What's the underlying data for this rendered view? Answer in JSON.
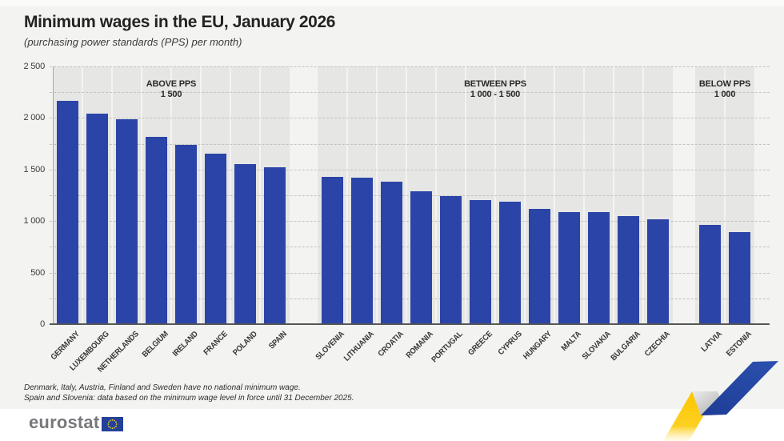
{
  "header": {
    "title": "Minimum wages in the EU, January 2026",
    "subtitle": "(purchasing power standards (PPS) per month)"
  },
  "y_axis": {
    "tick_labels": [
      "2 500",
      "2 000",
      "1 500",
      "1 000",
      "500",
      "0"
    ],
    "tick_values": [
      2500,
      2000,
      1500,
      1000,
      500,
      0
    ],
    "minor_step": 250
  },
  "chart_data": {
    "type": "bar",
    "title": "Minimum wages in the EU, January 2026",
    "subtitle": "(purchasing power standards (PPS) per month)",
    "ylabel": "PPS per month",
    "ylim": [
      0,
      2500
    ],
    "grid": "horizontal-dashed-every-250",
    "bar_color": "#2b44a7",
    "groups": [
      {
        "zone_label_line1": "ABOVE PPS",
        "zone_label_line2": "1 500",
        "categories": [
          "GERMANY",
          "LUXEMBOURG",
          "NETHERLANDS",
          "BELGIUM",
          "IRELAND",
          "FRANCE",
          "POLAND",
          "SPAIN"
        ],
        "values": [
          2170,
          2040,
          1985,
          1820,
          1740,
          1650,
          1555,
          1525
        ]
      },
      {
        "zone_label_line1": "BETWEEN PPS",
        "zone_label_line2": "1 000 - 1 500",
        "categories": [
          "SLOVENIA",
          "LITHUANIA",
          "CROATIA",
          "ROMANIA",
          "PORTUGAL",
          "GREECE",
          "CYPRUS",
          "HUNGARY",
          "MALTA",
          "SLOVAKIA",
          "BULGARIA",
          "CZECHIA"
        ],
        "values": [
          1425,
          1420,
          1385,
          1285,
          1240,
          1200,
          1185,
          1120,
          1090,
          1085,
          1045,
          1015
        ]
      },
      {
        "zone_label_line1": "BELOW PPS",
        "zone_label_line2": "1 000",
        "categories": [
          "LATVIA",
          "ESTONIA"
        ],
        "values": [
          960,
          890
        ]
      }
    ]
  },
  "notes": {
    "line1": "Denmark, Italy, Austria, Finland and Sweden have no national minimum wage.",
    "line2": "Spain and Slovenia: data based on the minimum wage level in force until 31 December 2025."
  },
  "footer": {
    "logo_text": "eurostat"
  },
  "icons": {
    "eu_flag": "eu-flag-icon",
    "ribbon": "trend-ribbon-icon"
  },
  "colors": {
    "bar": "#2b44a7",
    "panel_background": "#e6e6e4",
    "page_background": "#f3f3f1",
    "flag_blue": "#24419a",
    "star_yellow": "#f6d32d",
    "ribbon_yellow": "#fdc500",
    "ribbon_blue": "#2c51ae",
    "ribbon_gray": "#b9b9b9"
  }
}
